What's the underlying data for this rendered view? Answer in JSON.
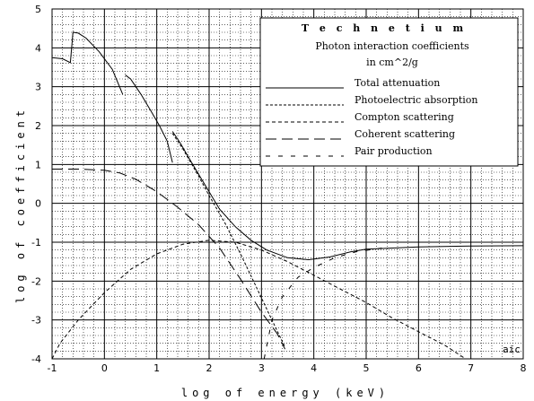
{
  "chart_data": {
    "type": "line",
    "title": "T e c h n e t i u m",
    "subtitle_lines": [
      "Photon interaction coefficients",
      "in cm^2/g"
    ],
    "xlabel": "log  of  energy  (keV)",
    "ylabel": "log  of  coefficient",
    "xlim": [
      -1,
      8
    ],
    "ylim": [
      -4,
      5
    ],
    "x_ticks": [
      "-1",
      "0",
      "1",
      "2",
      "3",
      "4",
      "5",
      "6",
      "7",
      "8"
    ],
    "y_ticks": [
      "-4",
      "-3",
      "-2",
      "-1",
      "0",
      "1",
      "2",
      "3",
      "4",
      "5"
    ],
    "grid": true,
    "minor_grid": "dotted",
    "legend_placement": "top-right",
    "corner_label": "aic",
    "series": [
      {
        "name": "Total attenuation",
        "style": "solid",
        "segments": [
          [
            [
              -1.0,
              3.75
            ],
            [
              -0.8,
              3.72
            ],
            [
              -0.65,
              3.62
            ],
            [
              -0.6,
              4.4
            ],
            [
              -0.5,
              4.38
            ],
            [
              -0.35,
              4.25
            ],
            [
              -0.1,
              3.9
            ],
            [
              0.15,
              3.45
            ],
            [
              0.35,
              2.8
            ]
          ],
          [
            [
              0.4,
              3.3
            ],
            [
              0.5,
              3.2
            ],
            [
              0.7,
              2.8
            ],
            [
              0.9,
              2.35
            ],
            [
              1.05,
              2.0
            ],
            [
              1.2,
              1.6
            ],
            [
              1.3,
              1.05
            ]
          ],
          [
            [
              1.3,
              1.85
            ],
            [
              1.45,
              1.55
            ],
            [
              1.6,
              1.2
            ],
            [
              1.8,
              0.75
            ],
            [
              2.0,
              0.3
            ],
            [
              2.2,
              -0.15
            ],
            [
              2.5,
              -0.6
            ],
            [
              2.8,
              -0.95
            ],
            [
              3.1,
              -1.2
            ],
            [
              3.5,
              -1.4
            ],
            [
              3.9,
              -1.45
            ],
            [
              4.3,
              -1.38
            ],
            [
              4.7,
              -1.25
            ],
            [
              5.0,
              -1.18
            ],
            [
              5.5,
              -1.15
            ],
            [
              6.0,
              -1.12
            ],
            [
              7.0,
              -1.1
            ],
            [
              8.0,
              -1.09
            ]
          ]
        ]
      },
      {
        "name": "Photoelectric absorption",
        "style": "fine-dash",
        "segments": [
          [
            [
              1.3,
              1.8
            ],
            [
              1.5,
              1.4
            ],
            [
              1.8,
              0.7
            ],
            [
              2.0,
              0.2
            ],
            [
              2.3,
              -0.5
            ],
            [
              2.6,
              -1.3
            ],
            [
              2.9,
              -2.15
            ],
            [
              3.2,
              -3.0
            ],
            [
              3.45,
              -3.7
            ]
          ]
        ]
      },
      {
        "name": "Compton scattering",
        "style": "short-dash",
        "segments": [
          [
            [
              -1.0,
              -4.0
            ],
            [
              -0.85,
              -3.6
            ],
            [
              -0.5,
              -3.0
            ],
            [
              0.0,
              -2.3
            ],
            [
              0.5,
              -1.7
            ],
            [
              1.0,
              -1.3
            ],
            [
              1.5,
              -1.05
            ],
            [
              2.0,
              -0.95
            ],
            [
              2.5,
              -1.0
            ],
            [
              3.0,
              -1.2
            ],
            [
              3.5,
              -1.5
            ],
            [
              4.0,
              -1.85
            ],
            [
              4.5,
              -2.2
            ],
            [
              5.0,
              -2.55
            ],
            [
              5.5,
              -2.95
            ],
            [
              6.0,
              -3.3
            ],
            [
              6.5,
              -3.65
            ],
            [
              6.9,
              -4.0
            ]
          ]
        ]
      },
      {
        "name": "Coherent scattering",
        "style": "long-dash",
        "segments": [
          [
            [
              -1.0,
              0.88
            ],
            [
              -0.5,
              0.88
            ],
            [
              0.0,
              0.85
            ],
            [
              0.3,
              0.78
            ],
            [
              0.6,
              0.62
            ],
            [
              1.0,
              0.3
            ],
            [
              1.4,
              -0.1
            ],
            [
              1.8,
              -0.55
            ],
            [
              2.2,
              -1.15
            ],
            [
              2.6,
              -1.95
            ],
            [
              3.0,
              -2.8
            ],
            [
              3.3,
              -3.35
            ],
            [
              3.45,
              -3.75
            ]
          ]
        ]
      },
      {
        "name": "Pair production",
        "style": "wide-dash",
        "segments": [
          [
            [
              3.05,
              -4.0
            ],
            [
              3.2,
              -3.0
            ],
            [
              3.4,
              -2.4
            ],
            [
              3.7,
              -1.9
            ],
            [
              4.0,
              -1.65
            ],
            [
              4.4,
              -1.4
            ],
            [
              4.8,
              -1.25
            ],
            [
              5.3,
              -1.15
            ]
          ]
        ]
      }
    ]
  }
}
